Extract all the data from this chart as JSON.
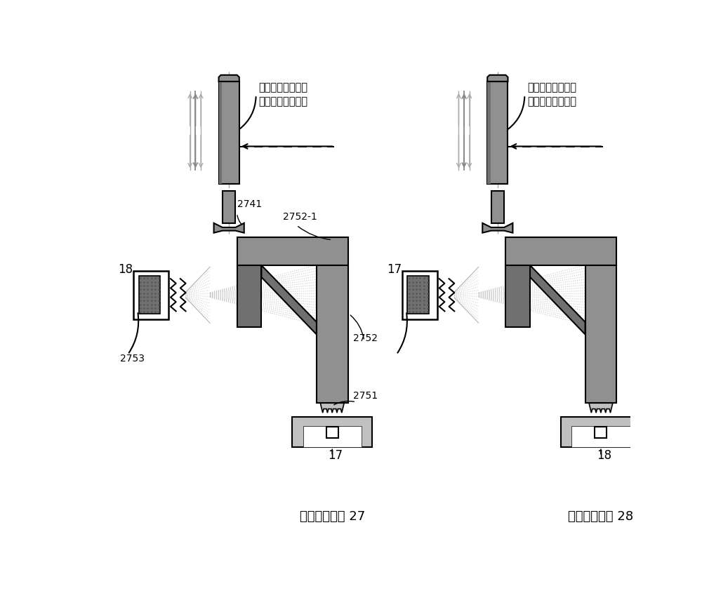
{
  "bg_color": "#ffffff",
  "dark_gray": "#707070",
  "mid_gray": "#909090",
  "light_gray": "#c0c0c0",
  "beam_gray": "#d0d0d0",
  "annotation1": "此为按键上升静止",
  "annotation2": "的位置，光路导通",
  "num_2741": "2741",
  "num_27521": "2752-1",
  "num_2752": "2752",
  "num_2751": "2751",
  "num_2753": "2753",
  "label_27": "具体实施方案 27",
  "label_28": "具体实施方案 28",
  "left_sensor_label": "18",
  "left_base_label": "17",
  "right_sensor_label": "17",
  "right_base_label": "18"
}
